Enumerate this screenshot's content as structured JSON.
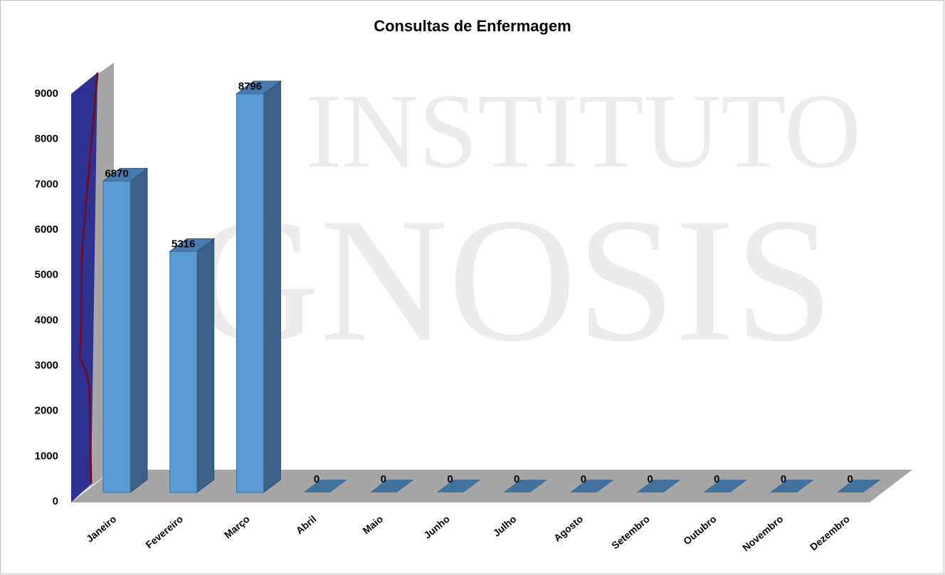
{
  "chart_data": {
    "type": "bar",
    "title": "Consultas de Enfermagem",
    "watermark": [
      "INSTITUTO",
      "GNOSIS"
    ],
    "categories": [
      "Janeiro",
      "Fevereiro",
      "Março",
      "Abril",
      "Maio",
      "Junho",
      "Julho",
      "Agosto",
      "Setembro",
      "Outubro",
      "Novembro",
      "Dezembro"
    ],
    "values": [
      6870,
      5316,
      8796,
      0,
      0,
      0,
      0,
      0,
      0,
      0,
      0,
      0
    ],
    "color": "#5b9bd5",
    "ylim": [
      0,
      9000
    ],
    "yticks": [
      0,
      1000,
      2000,
      3000,
      4000,
      5000,
      6000,
      7000,
      8000,
      9000
    ],
    "grid": false
  }
}
